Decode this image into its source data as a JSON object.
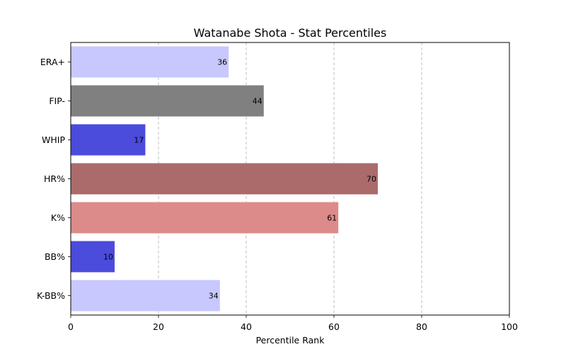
{
  "chart_data": {
    "type": "bar",
    "orientation": "horizontal",
    "title": "Watanabe Shota - Stat Percentiles",
    "xlabel": "Percentile Rank",
    "ylabel": "",
    "xlim": [
      0,
      100
    ],
    "xticks": [
      0,
      20,
      40,
      60,
      80,
      100
    ],
    "grid": "x-dashed",
    "categories": [
      "ERA+",
      "FIP-",
      "WHIP",
      "HR%",
      "K%",
      "BB%",
      "K-BB%"
    ],
    "values": [
      36,
      44,
      17,
      70,
      61,
      10,
      34
    ],
    "colors": [
      "#c8c8ff",
      "#808080",
      "#4b4bdc",
      "#ab6b6b",
      "#dd8a8a",
      "#4b4bdc",
      "#c8c8ff"
    ]
  }
}
